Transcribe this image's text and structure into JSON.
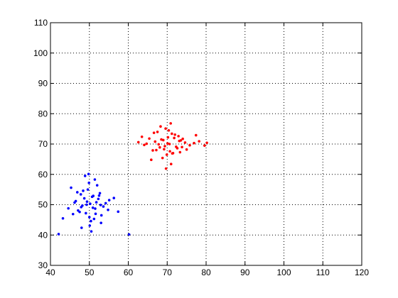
{
  "chart_data": {
    "type": "scatter",
    "xlim": [
      40,
      120
    ],
    "xticks": [
      40,
      50,
      60,
      70,
      80,
      90,
      100,
      110,
      120
    ],
    "ylim": [
      30,
      110
    ],
    "yticks": [
      30,
      40,
      50,
      60,
      70,
      80,
      90,
      100,
      110
    ],
    "grid": true,
    "series": [
      {
        "color": "#0000ff",
        "x": [
          50.2,
          48.7,
          51.5,
          49.1,
          52.3,
          47.8,
          50.9,
          53.1,
          46.5,
          49.6,
          51.8,
          50.4,
          48.2,
          52.7,
          47.1,
          49.9,
          54.2,
          45.8,
          50.7,
          51.2,
          48.9,
          53.6,
          46.9,
          50.1,
          49.3,
          52.0,
          47.5,
          51.0,
          55.1,
          44.6,
          50.5,
          48.4,
          53.0,
          49.8,
          51.6,
          46.2,
          52.5,
          50.0,
          47.9,
          54.8,
          43.2,
          56.3,
          42.1,
          57.4,
          60.2,
          45.3,
          48.0,
          51.4,
          49.4,
          52.9
        ],
        "values": [
          50.3,
          52.1,
          48.7,
          47.2,
          51.9,
          53.4,
          49.0,
          46.5,
          51.2,
          55.0,
          50.8,
          44.6,
          49.7,
          53.8,
          48.1,
          57.2,
          50.5,
          46.9,
          52.6,
          45.3,
          59.5,
          49.4,
          54.1,
          43.1,
          50.0,
          56.4,
          47.6,
          52.9,
          51.5,
          48.8,
          41.2,
          54.6,
          44.0,
          60.1,
          47.0,
          50.7,
          53.0,
          45.9,
          49.2,
          48.3,
          45.5,
          52.2,
          40.3,
          47.7,
          40.2,
          55.6,
          42.4,
          58.3,
          51.0,
          49.9
        ]
      },
      {
        "color": "#ff0000",
        "x": [
          70.1,
          68.5,
          72.3,
          69.2,
          71.8,
          66.9,
          73.5,
          70.7,
          67.8,
          71.2,
          74.6,
          65.4,
          69.9,
          72.9,
          68.1,
          70.4,
          75.8,
          64.7,
          71.5,
          69.6,
          73.1,
          67.2,
          70.9,
          76.9,
          63.5,
          68.8,
          72.0,
          69.4,
          74.0,
          66.3,
          71.0,
          70.2,
          67.5,
          73.8,
          62.6,
          78.2,
          79.6,
          65.9,
          72.6,
          69.0,
          77.4,
          64.1,
          71.3,
          68.3,
          75.0,
          70.6,
          66.6,
          73.3,
          69.7,
          80.2
        ],
        "values": [
          70.2,
          71.5,
          69.1,
          68.3,
          72.0,
          70.8,
          71.2,
          67.6,
          69.9,
          73.4,
          70.5,
          71.8,
          66.5,
          72.6,
          68.9,
          74.5,
          69.6,
          70.1,
          67.0,
          75.1,
          71.0,
          68.0,
          76.8,
          70.3,
          72.4,
          65.4,
          73.1,
          69.3,
          71.7,
          67.9,
          63.4,
          72.2,
          74.0,
          69.0,
          70.6,
          70.9,
          69.5,
          64.8,
          68.6,
          71.3,
          72.9,
          69.7,
          66.9,
          75.8,
          68.2,
          70.0,
          73.7,
          67.3,
          61.9,
          70.4
        ]
      }
    ]
  }
}
